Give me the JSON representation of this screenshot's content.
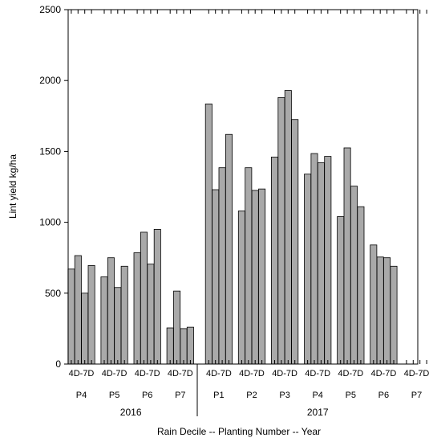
{
  "chart_data": {
    "type": "bar",
    "title": "",
    "ylabel": "Lint yield kg/ha",
    "xlabel": "Rain Decile --  Planting Number -- Year",
    "ylim": [
      0,
      2500
    ],
    "yticks": [
      0,
      500,
      1000,
      1500,
      2000,
      2500
    ],
    "grid": false,
    "legend": "none",
    "bar_color": "#a9a9a9",
    "years": [
      {
        "label": "2016",
        "groups": [
          {
            "decile": "4D-7D",
            "planting": "P4",
            "values": [
              670,
              765,
              500,
              695
            ]
          },
          {
            "decile": "4D-7D",
            "planting": "P5",
            "values": [
              615,
              750,
              540,
              690
            ]
          },
          {
            "decile": "4D-7D",
            "planting": "P6",
            "values": [
              785,
              930,
              705,
              950
            ]
          },
          {
            "decile": "4D-7D",
            "planting": "P7",
            "values": [
              255,
              515,
              250,
              260
            ]
          }
        ]
      },
      {
        "label": "2017",
        "groups": [
          {
            "decile": "4D-7D",
            "planting": "P1",
            "values": [
              1835,
              1230,
              1385,
              1620
            ]
          },
          {
            "decile": "4D-7D",
            "planting": "P2",
            "values": [
              1080,
              1385,
              1225,
              1235
            ]
          },
          {
            "decile": "4D-7D",
            "planting": "P3",
            "values": [
              1460,
              1880,
              1930,
              1725
            ]
          },
          {
            "decile": "4D-7D",
            "planting": "P4",
            "values": [
              1340,
              1485,
              1420,
              1465
            ]
          },
          {
            "decile": "4D-7D",
            "planting": "P5",
            "values": [
              1040,
              1525,
              1255,
              1110
            ]
          },
          {
            "decile": "4D-7D",
            "planting": "P6",
            "values": [
              840,
              755,
              750,
              690
            ]
          },
          {
            "decile": "4D-7D",
            "planting": "P7",
            "values": []
          }
        ]
      }
    ]
  }
}
